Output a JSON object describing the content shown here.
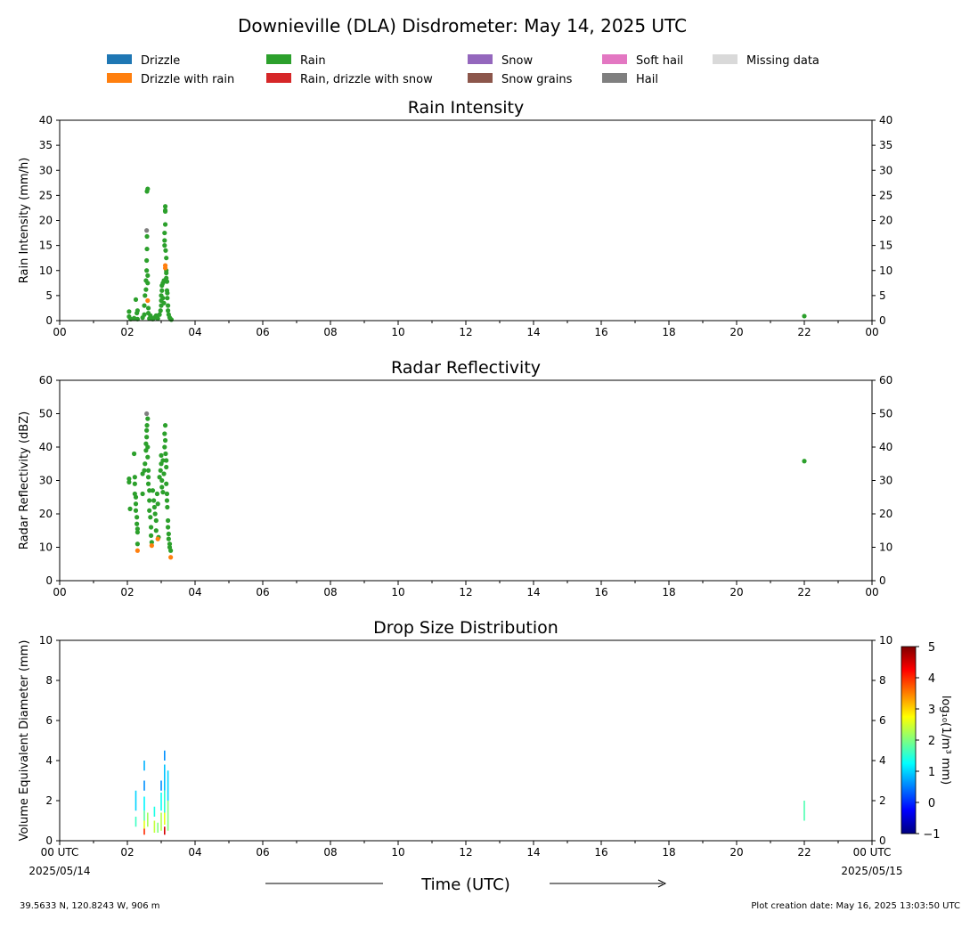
{
  "figure": {
    "title": "Downieville (DLA) Disdrometer: May 14, 2025 UTC",
    "xlabel": "Time (UTC)",
    "footer_left": "39.5633 N, 120.8243 W, 906 m",
    "footer_right": "Plot creation date: May 16, 2025 13:03:50 UTC",
    "x_ticks": [
      "00",
      "02",
      "04",
      "06",
      "08",
      "10",
      "12",
      "14",
      "16",
      "18",
      "20",
      "22",
      "00"
    ],
    "bottom_x_ticks": [
      "00 UTC",
      "02",
      "04",
      "06",
      "08",
      "10",
      "12",
      "14",
      "16",
      "18",
      "20",
      "22",
      "00 UTC"
    ],
    "start_date": "2025/05/14",
    "end_date": "2025/05/15"
  },
  "legend": [
    {
      "label": "Drizzle",
      "color": "#1f77b4"
    },
    {
      "label": "Drizzle with rain",
      "color": "#ff7f0e"
    },
    {
      "label": "Rain",
      "color": "#2ca02c"
    },
    {
      "label": "Rain, drizzle with snow",
      "color": "#d62728"
    },
    {
      "label": "Snow",
      "color": "#9467bd"
    },
    {
      "label": "Snow grains",
      "color": "#8c564b"
    },
    {
      "label": "Soft hail",
      "color": "#e377c2"
    },
    {
      "label": "Hail",
      "color": "#7f7f7f"
    },
    {
      "label": "Missing data",
      "color": "#d9d9d9"
    }
  ],
  "chart_data": [
    {
      "type": "scatter",
      "title": "Rain Intensity",
      "ylabel": "Rain Intensity (mm/h)",
      "xlim": [
        0,
        24
      ],
      "ylim": [
        0,
        40
      ],
      "yticks": [
        0,
        5,
        10,
        15,
        20,
        25,
        30,
        35,
        40
      ],
      "series": [
        {
          "name": "Rain",
          "color": "#2ca02c",
          "points": [
            [
              2.05,
              1.8
            ],
            [
              2.05,
              0.8
            ],
            [
              2.1,
              0.3
            ],
            [
              2.2,
              0.5
            ],
            [
              2.25,
              4.2
            ],
            [
              2.28,
              1.5
            ],
            [
              2.3,
              0.3
            ],
            [
              2.3,
              2.0
            ],
            [
              2.45,
              0.6
            ],
            [
              2.5,
              1.2
            ],
            [
              2.5,
              3.0
            ],
            [
              2.52,
              5.0
            ],
            [
              2.55,
              6.2
            ],
            [
              2.55,
              8.0
            ],
            [
              2.57,
              10.0
            ],
            [
              2.57,
              12.0
            ],
            [
              2.58,
              14.3
            ],
            [
              2.58,
              16.8
            ],
            [
              2.58,
              25.8
            ],
            [
              2.6,
              26.3
            ],
            [
              2.6,
              9.0
            ],
            [
              2.6,
              7.5
            ],
            [
              2.62,
              2.5
            ],
            [
              2.62,
              1.5
            ],
            [
              2.65,
              0.4
            ],
            [
              2.68,
              1.0
            ],
            [
              2.7,
              0.5
            ],
            [
              2.75,
              0.3
            ],
            [
              2.8,
              0.6
            ],
            [
              2.85,
              1.0
            ],
            [
              2.9,
              0.4
            ],
            [
              2.95,
              1.2
            ],
            [
              2.98,
              2.0
            ],
            [
              3.0,
              3.0
            ],
            [
              3.0,
              4.0
            ],
            [
              3.0,
              5.0
            ],
            [
              3.02,
              6.0
            ],
            [
              3.02,
              7.0
            ],
            [
              3.05,
              7.5
            ],
            [
              3.05,
              4.5
            ],
            [
              3.08,
              8.0
            ],
            [
              3.08,
              3.5
            ],
            [
              3.1,
              15.0
            ],
            [
              3.1,
              16.0
            ],
            [
              3.1,
              17.5
            ],
            [
              3.12,
              22.0
            ],
            [
              3.12,
              22.8
            ],
            [
              3.12,
              21.8
            ],
            [
              3.12,
              19.2
            ],
            [
              3.13,
              14.0
            ],
            [
              3.15,
              12.5
            ],
            [
              3.15,
              10.0
            ],
            [
              3.15,
              9.5
            ],
            [
              3.15,
              8.5
            ],
            [
              3.17,
              7.8
            ],
            [
              3.17,
              6.0
            ],
            [
              3.18,
              5.5
            ],
            [
              3.18,
              4.5
            ],
            [
              3.2,
              3.0
            ],
            [
              3.2,
              2.0
            ],
            [
              3.22,
              1.2
            ],
            [
              3.25,
              0.6
            ],
            [
              3.28,
              0.3
            ],
            [
              3.3,
              0.2
            ],
            [
              22.0,
              0.9
            ]
          ]
        },
        {
          "name": "Drizzle with rain",
          "color": "#ff7f0e",
          "points": [
            [
              2.6,
              4.0
            ],
            [
              3.12,
              11.0
            ],
            [
              3.12,
              10.5
            ]
          ]
        },
        {
          "name": "Hail",
          "color": "#7f7f7f",
          "points": [
            [
              2.57,
              18.0
            ]
          ]
        }
      ]
    },
    {
      "type": "scatter",
      "title": "Radar Reflectivity",
      "ylabel": "Radar Reflectivity (dBZ)",
      "xlim": [
        0,
        24
      ],
      "ylim": [
        0,
        60
      ],
      "yticks": [
        0,
        10,
        20,
        30,
        40,
        50,
        60
      ],
      "series": [
        {
          "name": "Rain",
          "color": "#2ca02c",
          "points": [
            [
              2.05,
              29.5
            ],
            [
              2.05,
              30.5
            ],
            [
              2.08,
              21.5
            ],
            [
              2.2,
              38.0
            ],
            [
              2.22,
              31.0
            ],
            [
              2.22,
              29.0
            ],
            [
              2.22,
              26.0
            ],
            [
              2.25,
              25.0
            ],
            [
              2.25,
              23.0
            ],
            [
              2.25,
              21.0
            ],
            [
              2.28,
              19.0
            ],
            [
              2.28,
              17.0
            ],
            [
              2.3,
              15.5
            ],
            [
              2.3,
              14.5
            ],
            [
              2.3,
              11.0
            ],
            [
              2.45,
              32.0
            ],
            [
              2.45,
              26.0
            ],
            [
              2.5,
              33.0
            ],
            [
              2.52,
              35.0
            ],
            [
              2.55,
              39.0
            ],
            [
              2.55,
              41.0
            ],
            [
              2.57,
              43.0
            ],
            [
              2.57,
              45.0
            ],
            [
              2.58,
              46.5
            ],
            [
              2.6,
              48.5
            ],
            [
              2.6,
              40.0
            ],
            [
              2.6,
              37.0
            ],
            [
              2.62,
              33.0
            ],
            [
              2.62,
              31.0
            ],
            [
              2.62,
              29.0
            ],
            [
              2.65,
              27.0
            ],
            [
              2.65,
              24.0
            ],
            [
              2.65,
              21.0
            ],
            [
              2.68,
              19.0
            ],
            [
              2.7,
              16.0
            ],
            [
              2.7,
              13.5
            ],
            [
              2.72,
              11.5
            ],
            [
              2.75,
              27.0
            ],
            [
              2.78,
              24.0
            ],
            [
              2.8,
              22.0
            ],
            [
              2.82,
              20.0
            ],
            [
              2.85,
              18.0
            ],
            [
              2.85,
              15.0
            ],
            [
              2.88,
              26.0
            ],
            [
              2.9,
              23.0
            ],
            [
              2.92,
              13.0
            ],
            [
              2.95,
              31.0
            ],
            [
              2.98,
              33.0
            ],
            [
              3.0,
              35.0
            ],
            [
              3.0,
              37.5
            ],
            [
              3.02,
              30.0
            ],
            [
              3.02,
              28.0
            ],
            [
              3.05,
              36.0
            ],
            [
              3.05,
              26.5
            ],
            [
              3.08,
              32.0
            ],
            [
              3.1,
              40.0
            ],
            [
              3.1,
              44.0
            ],
            [
              3.12,
              46.5
            ],
            [
              3.12,
              42.0
            ],
            [
              3.13,
              38.0
            ],
            [
              3.15,
              36.0
            ],
            [
              3.15,
              34.0
            ],
            [
              3.15,
              29.0
            ],
            [
              3.17,
              26.0
            ],
            [
              3.17,
              24.0
            ],
            [
              3.18,
              22.0
            ],
            [
              3.2,
              18.0
            ],
            [
              3.2,
              16.0
            ],
            [
              3.22,
              14.0
            ],
            [
              3.22,
              12.5
            ],
            [
              3.25,
              11.0
            ],
            [
              3.25,
              10.0
            ],
            [
              3.28,
              9.0
            ],
            [
              22.0,
              35.8
            ]
          ]
        },
        {
          "name": "Drizzle with rain",
          "color": "#ff7f0e",
          "points": [
            [
              2.3,
              9.0
            ],
            [
              2.72,
              10.5
            ],
            [
              2.9,
              12.5
            ],
            [
              3.28,
              7.0
            ]
          ]
        },
        {
          "name": "Hail",
          "color": "#7f7f7f",
          "points": [
            [
              2.57,
              50.0
            ]
          ]
        }
      ]
    },
    {
      "type": "heatmap",
      "title": "Drop Size Distribution",
      "ylabel": "Volume Equivalent Diameter (mm)",
      "colorbar_label": "log₁₀(1/m³ mm)",
      "colorbar_ticks": [
        5,
        4,
        3,
        2,
        1,
        0,
        -1
      ],
      "colorbar_range": [
        -1,
        5
      ],
      "colorscale": [
        "#00007f",
        "#0000ff",
        "#007fff",
        "#00ffff",
        "#7fff7f",
        "#ffff00",
        "#ff7f00",
        "#ff0000",
        "#7f0000"
      ],
      "xlim": [
        0,
        24
      ],
      "ylim": [
        0,
        10
      ],
      "yticks": [
        0,
        2,
        4,
        6,
        8,
        10
      ],
      "cells": [
        {
          "x": 2.25,
          "y0": 1.5,
          "y1": 2.5,
          "v": 1.0
        },
        {
          "x": 2.25,
          "y0": 0.7,
          "y1": 1.2,
          "v": 1.6
        },
        {
          "x": 2.5,
          "y0": 3.5,
          "y1": 4.0,
          "v": 0.8
        },
        {
          "x": 2.5,
          "y0": 2.5,
          "y1": 3.0,
          "v": 0.6
        },
        {
          "x": 2.5,
          "y0": 1.5,
          "y1": 2.2,
          "v": 1.2
        },
        {
          "x": 2.5,
          "y0": 1.0,
          "y1": 1.5,
          "v": 1.8
        },
        {
          "x": 2.5,
          "y0": 0.6,
          "y1": 1.0,
          "v": 2.6
        },
        {
          "x": 2.5,
          "y0": 0.3,
          "y1": 0.6,
          "v": 4.0
        },
        {
          "x": 2.6,
          "y0": 0.7,
          "y1": 1.4,
          "v": 2.2
        },
        {
          "x": 2.8,
          "y0": 1.2,
          "y1": 1.7,
          "v": 1.4
        },
        {
          "x": 2.8,
          "y0": 0.4,
          "y1": 1.0,
          "v": 2.4
        },
        {
          "x": 2.9,
          "y0": 0.4,
          "y1": 0.9,
          "v": 2.0
        },
        {
          "x": 3.0,
          "y0": 2.5,
          "y1": 3.0,
          "v": 0.6
        },
        {
          "x": 3.0,
          "y0": 1.5,
          "y1": 2.4,
          "v": 1.3
        },
        {
          "x": 3.0,
          "y0": 0.5,
          "y1": 1.4,
          "v": 2.3
        },
        {
          "x": 3.1,
          "y0": 4.0,
          "y1": 4.5,
          "v": 0.6
        },
        {
          "x": 3.1,
          "y0": 2.5,
          "y1": 3.8,
          "v": 0.9
        },
        {
          "x": 3.1,
          "y0": 1.4,
          "y1": 2.5,
          "v": 1.5
        },
        {
          "x": 3.1,
          "y0": 0.8,
          "y1": 1.4,
          "v": 2.6
        },
        {
          "x": 3.1,
          "y0": 0.3,
          "y1": 0.7,
          "v": 4.5
        },
        {
          "x": 3.2,
          "y0": 2.0,
          "y1": 3.5,
          "v": 1.0
        },
        {
          "x": 3.2,
          "y0": 0.5,
          "y1": 2.0,
          "v": 2.0
        },
        {
          "x": 22.0,
          "y0": 1.0,
          "y1": 2.0,
          "v": 1.7
        }
      ]
    }
  ]
}
